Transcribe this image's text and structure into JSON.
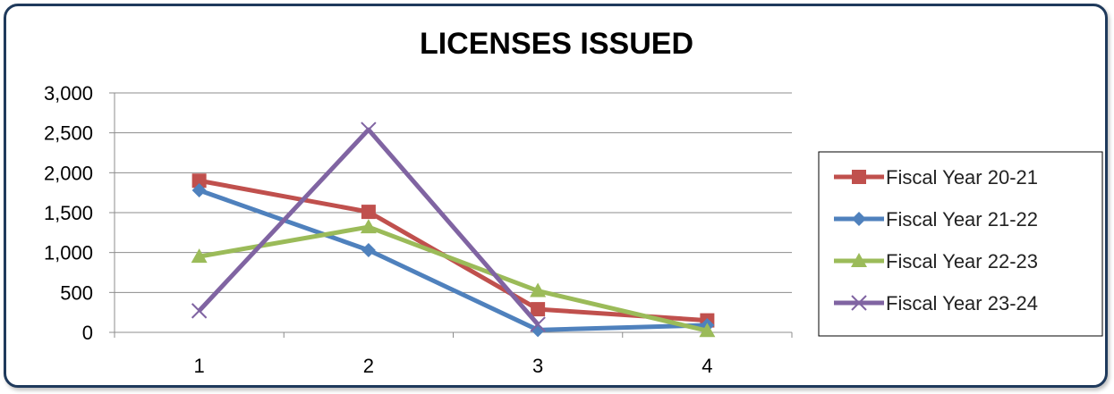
{
  "chart_data": {
    "type": "line",
    "title": "LICENSES ISSUED",
    "xlabel": "",
    "ylabel": "",
    "categories": [
      "1",
      "2",
      "3",
      "4"
    ],
    "ylim": [
      0,
      3000
    ],
    "yticks": [
      0,
      500,
      1000,
      1500,
      2000,
      2500,
      3000
    ],
    "ytick_labels": [
      "0",
      "500",
      "1,000",
      "1,500",
      "2,000",
      "2,500",
      "3,000"
    ],
    "grid": "horizontal",
    "legend_position": "right",
    "series": [
      {
        "name": "Fiscal Year 20-21",
        "values": [
          1900,
          1510,
          290,
          150
        ],
        "color": "#c0504d",
        "marker": "square"
      },
      {
        "name": "Fiscal Year 21-22",
        "values": [
          1780,
          1030,
          30,
          90
        ],
        "color": "#4f81bd",
        "marker": "diamond"
      },
      {
        "name": "Fiscal Year 22-23",
        "values": [
          950,
          1320,
          520,
          20
        ],
        "color": "#9bbb59",
        "marker": "triangle"
      },
      {
        "name": "Fiscal Year 23-24",
        "values": [
          270,
          2540,
          100,
          null
        ],
        "color": "#8064a2",
        "marker": "x"
      }
    ]
  }
}
